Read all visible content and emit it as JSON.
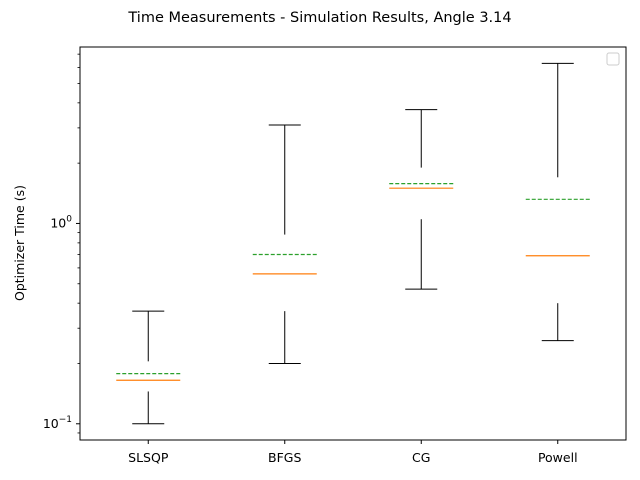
{
  "chart_data": {
    "type": "boxplot",
    "title": "Time Measurements - Simulation Results, Angle 3.14",
    "xlabel": "",
    "ylabel": "Optimizer Time (s)",
    "yscale": "log",
    "ylim": [
      0.083,
      7.6
    ],
    "yticks": [
      {
        "value": 0.1,
        "base": "10",
        "exp": "−1"
      },
      {
        "value": 1.0,
        "base": "10",
        "exp": "0"
      }
    ],
    "legend": {
      "placement": "top-right",
      "entries": []
    },
    "grid": false,
    "colors": {
      "box": "#000000",
      "median": "#ff7f0e",
      "mean": "#2ca02c"
    },
    "categories": [
      "SLSQP",
      "BFGS",
      "CG",
      "Powell"
    ],
    "series": [
      {
        "category": "SLSQP",
        "whisker_low": 0.1,
        "q1": 0.145,
        "median": 0.165,
        "mean": 0.178,
        "q3": 0.205,
        "whisker_high": 0.365
      },
      {
        "category": "BFGS",
        "whisker_low": 0.2,
        "q1": 0.365,
        "median": 0.56,
        "mean": 0.7,
        "q3": 0.88,
        "whisker_high": 3.1
      },
      {
        "category": "CG",
        "whisker_low": 0.47,
        "q1": 1.05,
        "median": 1.5,
        "mean": 1.58,
        "q3": 1.9,
        "whisker_high": 3.7
      },
      {
        "category": "Powell",
        "whisker_low": 0.26,
        "q1": 0.4,
        "median": 0.69,
        "mean": 1.32,
        "q3": 1.7,
        "whisker_high": 6.3
      }
    ]
  }
}
